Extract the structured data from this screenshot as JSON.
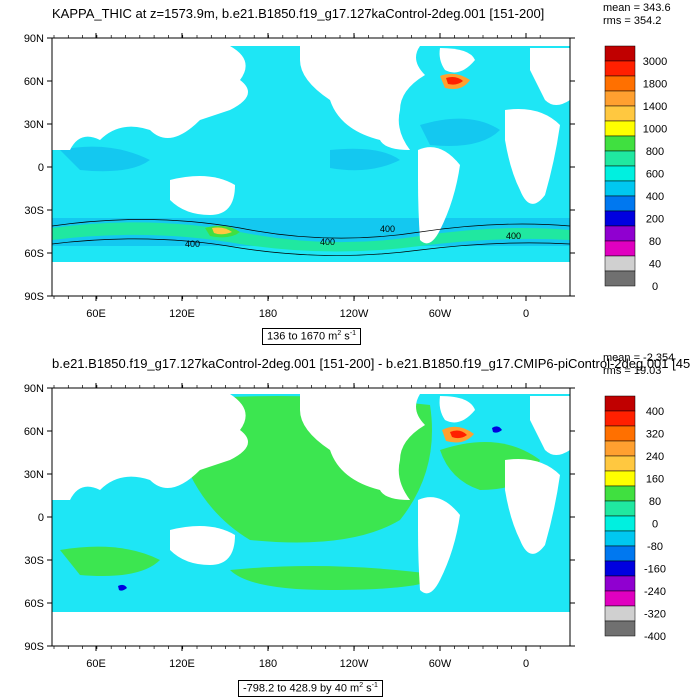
{
  "panels": [
    {
      "title": "KAPPA_THIC at z=1573.9m, b.e21.B1850.f19_g17.127kaControl-2deg.001 [151-200]",
      "mean_label": "mean = 343.6",
      "rms_label": "rms = 354.2",
      "range_text": "136 to 1670 m",
      "range_unit_exp": "2",
      "range_unit_tail": " s",
      "range_unit_exp2": "-1",
      "contour_labels": [
        "400",
        "400",
        "400",
        "400"
      ],
      "chart_data": {
        "type": "heatmap",
        "title": "KAPPA_THIC at z=1573.9m, b.e21.B1850.f19_g17.127kaControl-2deg.001 [151-200]",
        "xticks": [
          "60E",
          "120E",
          "180",
          "120W",
          "60W",
          "0"
        ],
        "yticks": [
          "90N",
          "60N",
          "30N",
          "0",
          "30S",
          "60S",
          "90S"
        ],
        "colorbar_levels": [
          "3000",
          "1800",
          "1400",
          "1000",
          "800",
          "600",
          "400",
          "200",
          "80",
          "40",
          "0"
        ],
        "colorbar_colors": [
          "#c00000",
          "#ff2000",
          "#ff7000",
          "#ffa030",
          "#ffc840",
          "#ffff00",
          "#40e040",
          "#20e8a0",
          "#00f0e0",
          "#00c8f0",
          "#0078f0",
          "#0000e0",
          "#9000d0",
          "#e000c0",
          "#d0d0d0",
          "#707070"
        ],
        "mean": 343.6,
        "rms": 354.2,
        "min": 136,
        "max": 1670
      }
    },
    {
      "title": "b.e21.B1850.f19_g17.127kaControl-2deg.001 [151-200] - b.e21.B1850.f19_g17.CMIP6-piControl-2deg.001 [45",
      "mean_label": "mean = -2.354",
      "rms_label": "rms = 19.03",
      "range_text": "-798.2 to 428.9 by 40 m",
      "range_unit_exp": "2",
      "range_unit_tail": " s",
      "range_unit_exp2": "-1",
      "chart_data": {
        "type": "heatmap",
        "title": "b.e21.B1850.f19_g17.127kaControl-2deg.001 [151-200] - b.e21.B1850.f19_g17.CMIP6-piControl-2deg.001 [45",
        "xticks": [
          "60E",
          "120E",
          "180",
          "120W",
          "60W",
          "0"
        ],
        "yticks": [
          "90N",
          "60N",
          "30N",
          "0",
          "30S",
          "60S",
          "90S"
        ],
        "colorbar_levels": [
          "400",
          "320",
          "240",
          "160",
          "80",
          "0",
          "-80",
          "-160",
          "-240",
          "-320",
          "-400"
        ],
        "colorbar_colors": [
          "#c00000",
          "#ff2000",
          "#ff7000",
          "#ffa030",
          "#ffc840",
          "#ffff00",
          "#40e040",
          "#20e8a0",
          "#00f0e0",
          "#00c8f0",
          "#0078f0",
          "#0000e0",
          "#9000d0",
          "#e000c0",
          "#d0d0d0",
          "#707070"
        ],
        "mean": -2.354,
        "rms": 19.03,
        "min": -798.2,
        "max": 428.9,
        "interval": 40
      }
    }
  ],
  "colors": {
    "ocean_top": "#1ee6f5",
    "ocean_top_mid": "#14c8f0",
    "ocean_top_deep": "#0f82e6",
    "ocean_bottom": "#1ee6f5",
    "ocean_bottom_zero": "#3ce650",
    "land": "#ffffff"
  }
}
